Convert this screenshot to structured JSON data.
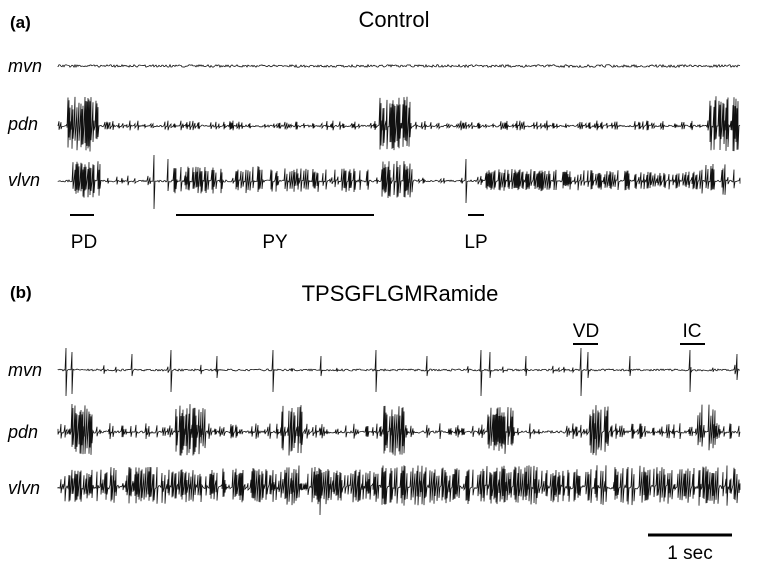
{
  "panels": [
    {
      "label": "(a)",
      "condition": "Control",
      "channels": [
        "mvn",
        "pdn",
        "vlvn"
      ],
      "unit_labels": [
        "PD",
        "PY",
        "LP"
      ]
    },
    {
      "label": "(b)",
      "condition": "TPSGFLGMRamide",
      "channels": [
        "mvn",
        "pdn",
        "vlvn"
      ],
      "unit_labels": [
        "VD",
        "IC"
      ]
    }
  ],
  "scale_bar": {
    "label": "1 sec",
    "duration_sec": 1
  }
}
